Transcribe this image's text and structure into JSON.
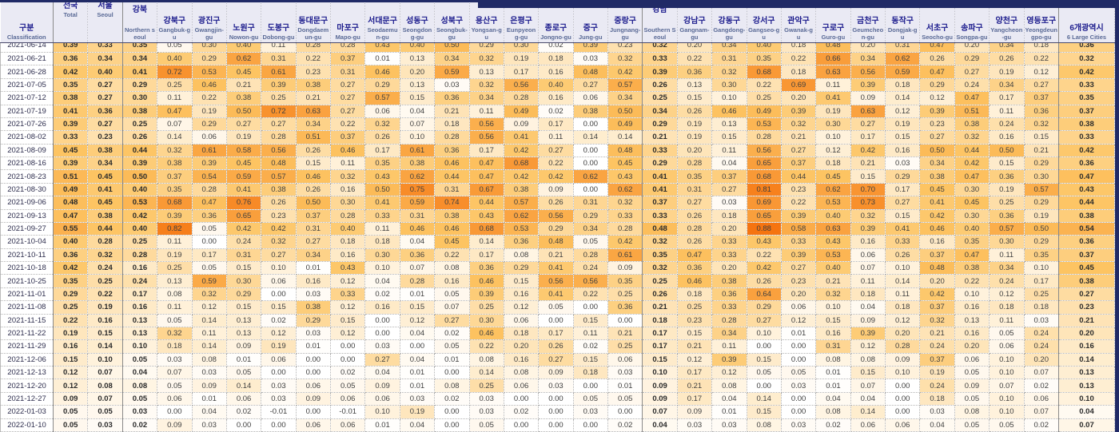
{
  "table": {
    "corner": {
      "ko": "구분",
      "en": "Classification"
    },
    "colors": {
      "band_navy": "#202A66",
      "header_bg": "#EAEAF4",
      "header_korean_text": "#1A1A8C",
      "header_english_text": "#5A6A96",
      "heat_scale_min": "#FFFFFF",
      "heat_scale_mid": "#FDC462",
      "heat_scale_max": "#F5700C",
      "heat_scale_cap": 0.9
    },
    "columns": [
      {
        "ko": "전국",
        "en": "Total",
        "bold": true,
        "lift": true
      },
      {
        "ko": "서울",
        "en": "Seoul",
        "bold": true,
        "lift": true
      },
      {
        "ko": "강북",
        "en": "Northern seoul",
        "bold": true,
        "group": true
      },
      {
        "ko": "강북구",
        "en": "Gangbuk-gu"
      },
      {
        "ko": "광진구",
        "en": "Gwangjin-gu"
      },
      {
        "ko": "노원구",
        "en": "Nowon-gu"
      },
      {
        "ko": "도봉구",
        "en": "Dobong-gu"
      },
      {
        "ko": "동대문구",
        "en": "Dongdaemun-gu"
      },
      {
        "ko": "마포구",
        "en": "Mapo-gu"
      },
      {
        "ko": "서대문구",
        "en": "Seodaemun-gu"
      },
      {
        "ko": "성동구",
        "en": "Seongdong-gu"
      },
      {
        "ko": "성북구",
        "en": "Seongbuk-gu"
      },
      {
        "ko": "용산구",
        "en": "Yongsan-gu"
      },
      {
        "ko": "은평구",
        "en": "Eunpyeong-gu"
      },
      {
        "ko": "종로구",
        "en": "Jongno-gu"
      },
      {
        "ko": "중구",
        "en": "Jung-gu"
      },
      {
        "ko": "중랑구",
        "en": "Jungnang-gu"
      },
      {
        "ko": "강남",
        "en": "Southern Seoul",
        "bold": true,
        "group": true
      },
      {
        "ko": "강남구",
        "en": "Gangnam-gu"
      },
      {
        "ko": "강동구",
        "en": "Gangdong-gu"
      },
      {
        "ko": "강서구",
        "en": "Gangseo-gu"
      },
      {
        "ko": "관악구",
        "en": "Gwanak-gu"
      },
      {
        "ko": "구로구",
        "en": "Guro-gu"
      },
      {
        "ko": "금천구",
        "en": "Geumcheon-gu"
      },
      {
        "ko": "동작구",
        "en": "Dongjak-gu"
      },
      {
        "ko": "서초구",
        "en": "Seocho-gu"
      },
      {
        "ko": "송파구",
        "en": "Songpa-gu"
      },
      {
        "ko": "양천구",
        "en": "Yangcheon-gu"
      },
      {
        "ko": "영등포구",
        "en": "Yeongdeungpo-gu"
      },
      {
        "ko": "6개광역시",
        "en": "6 Large Cities",
        "bold": true,
        "wide": true
      }
    ],
    "rows": [
      {
        "date": "2021-06-14",
        "values": [
          0.39,
          0.33,
          0.35,
          0.05,
          0.3,
          0.4,
          0.11,
          0.28,
          0.28,
          0.43,
          0.4,
          0.5,
          0.29,
          0.3,
          0.02,
          0.39,
          0.23,
          0.32,
          0.2,
          0.34,
          0.4,
          0.18,
          0.48,
          0.2,
          0.31,
          0.47,
          0.2,
          0.34,
          0.18,
          0.36
        ]
      },
      {
        "date": "2021-06-21",
        "values": [
          0.36,
          0.34,
          0.34,
          0.4,
          0.29,
          0.62,
          0.31,
          0.22,
          0.37,
          0.01,
          0.13,
          0.34,
          0.32,
          0.19,
          0.18,
          0.03,
          0.32,
          0.33,
          0.22,
          0.31,
          0.35,
          0.22,
          0.66,
          0.34,
          0.62,
          0.26,
          0.29,
          0.26,
          0.22,
          0.32
        ]
      },
      {
        "date": "2021-06-28",
        "values": [
          0.42,
          0.4,
          0.41,
          0.72,
          0.53,
          0.45,
          0.61,
          0.23,
          0.31,
          0.46,
          0.2,
          0.59,
          0.13,
          0.17,
          0.16,
          0.48,
          0.42,
          0.39,
          0.36,
          0.32,
          0.68,
          0.18,
          0.63,
          0.56,
          0.59,
          0.47,
          0.27,
          0.19,
          0.12,
          0.42
        ]
      },
      {
        "date": "2021-07-05",
        "values": [
          0.35,
          0.27,
          0.29,
          0.25,
          0.46,
          0.21,
          0.39,
          0.38,
          0.27,
          0.29,
          0.13,
          0.03,
          0.32,
          0.56,
          0.4,
          0.27,
          0.57,
          0.26,
          0.13,
          0.3,
          0.22,
          0.69,
          0.11,
          0.39,
          0.18,
          0.29,
          0.24,
          0.34,
          0.27,
          0.33
        ]
      },
      {
        "date": "2021-07-12",
        "values": [
          0.38,
          0.27,
          0.3,
          0.11,
          0.22,
          0.38,
          0.25,
          0.21,
          0.27,
          0.57,
          0.15,
          0.36,
          0.34,
          0.28,
          0.16,
          0.06,
          0.34,
          0.25,
          0.15,
          0.1,
          0.25,
          0.2,
          0.41,
          0.09,
          0.14,
          0.12,
          0.47,
          0.17,
          0.37,
          0.35
        ]
      },
      {
        "date": "2021-07-19",
        "values": [
          0.41,
          0.36,
          0.38,
          0.47,
          0.19,
          0.5,
          0.72,
          0.63,
          0.27,
          0.06,
          0.04,
          0.21,
          0.11,
          0.49,
          0.02,
          0.38,
          0.5,
          0.34,
          0.26,
          0.46,
          0.49,
          0.39,
          0.19,
          0.63,
          0.12,
          0.39,
          0.51,
          0.11,
          0.36,
          0.37
        ]
      },
      {
        "date": "2021-07-26",
        "values": [
          0.39,
          0.27,
          0.25,
          0.07,
          0.29,
          0.27,
          0.27,
          0.34,
          0.22,
          0.32,
          0.07,
          0.18,
          0.56,
          0.09,
          0.17,
          0.0,
          0.49,
          0.29,
          0.19,
          0.13,
          0.53,
          0.32,
          0.3,
          0.27,
          0.19,
          0.23,
          0.38,
          0.24,
          0.32,
          0.38
        ]
      },
      {
        "date": "2021-08-02",
        "values": [
          0.33,
          0.23,
          0.26,
          0.14,
          0.06,
          0.19,
          0.28,
          0.51,
          0.37,
          0.26,
          0.1,
          0.28,
          0.56,
          0.41,
          0.11,
          0.14,
          0.14,
          0.21,
          0.19,
          0.15,
          0.28,
          0.21,
          0.1,
          0.17,
          0.15,
          0.27,
          0.32,
          0.16,
          0.15,
          0.33
        ]
      },
      {
        "date": "2021-08-09",
        "values": [
          0.45,
          0.38,
          0.44,
          0.32,
          0.61,
          0.58,
          0.56,
          0.26,
          0.46,
          0.17,
          0.61,
          0.36,
          0.17,
          0.42,
          0.27,
          0.0,
          0.48,
          0.33,
          0.2,
          0.11,
          0.56,
          0.27,
          0.12,
          0.42,
          0.16,
          0.5,
          0.44,
          0.5,
          0.21,
          0.42
        ]
      },
      {
        "date": "2021-08-16",
        "values": [
          0.39,
          0.34,
          0.39,
          0.38,
          0.39,
          0.45,
          0.48,
          0.15,
          0.11,
          0.35,
          0.38,
          0.46,
          0.47,
          0.68,
          0.22,
          0.0,
          0.45,
          0.29,
          0.28,
          0.04,
          0.65,
          0.37,
          0.18,
          0.21,
          0.03,
          0.34,
          0.42,
          0.15,
          0.29,
          0.36
        ]
      },
      {
        "date": "2021-08-23",
        "values": [
          0.51,
          0.45,
          0.5,
          0.37,
          0.54,
          0.59,
          0.57,
          0.46,
          0.32,
          0.43,
          0.62,
          0.44,
          0.47,
          0.42,
          0.42,
          0.62,
          0.43,
          0.41,
          0.35,
          0.37,
          0.68,
          0.44,
          0.45,
          0.15,
          0.29,
          0.38,
          0.47,
          0.36,
          0.3,
          0.47
        ]
      },
      {
        "date": "2021-08-30",
        "values": [
          0.49,
          0.41,
          0.4,
          0.35,
          0.28,
          0.41,
          0.38,
          0.26,
          0.16,
          0.5,
          0.75,
          0.31,
          0.67,
          0.38,
          0.09,
          0.0,
          0.62,
          0.41,
          0.31,
          0.27,
          0.81,
          0.23,
          0.62,
          0.7,
          0.17,
          0.45,
          0.3,
          0.19,
          0.57,
          0.43
        ]
      },
      {
        "date": "2021-09-06",
        "values": [
          0.48,
          0.45,
          0.53,
          0.68,
          0.47,
          0.76,
          0.26,
          0.5,
          0.3,
          0.41,
          0.59,
          0.74,
          0.44,
          0.57,
          0.26,
          0.31,
          0.32,
          0.37,
          0.27,
          0.03,
          0.69,
          0.22,
          0.53,
          0.73,
          0.27,
          0.41,
          0.45,
          0.25,
          0.29,
          0.44
        ]
      },
      {
        "date": "2021-09-13",
        "values": [
          0.47,
          0.38,
          0.42,
          0.39,
          0.36,
          0.65,
          0.23,
          0.37,
          0.28,
          0.33,
          0.31,
          0.38,
          0.43,
          0.62,
          0.56,
          0.29,
          0.33,
          0.33,
          0.26,
          0.18,
          0.65,
          0.39,
          0.4,
          0.32,
          0.15,
          0.42,
          0.3,
          0.36,
          0.19,
          0.38
        ]
      },
      {
        "date": "2021-09-27",
        "values": [
          0.55,
          0.44,
          0.4,
          0.82,
          0.05,
          0.42,
          0.42,
          0.31,
          0.4,
          0.11,
          0.46,
          0.46,
          0.68,
          0.53,
          0.29,
          0.34,
          0.28,
          0.48,
          0.28,
          0.2,
          0.88,
          0.58,
          0.63,
          0.39,
          0.41,
          0.46,
          0.4,
          0.57,
          0.5,
          0.54
        ]
      },
      {
        "date": "2021-10-04",
        "values": [
          0.4,
          0.28,
          0.25,
          0.11,
          0.0,
          0.24,
          0.32,
          0.27,
          0.18,
          0.18,
          0.04,
          0.45,
          0.14,
          0.36,
          0.48,
          0.05,
          0.42,
          0.32,
          0.26,
          0.33,
          0.43,
          0.33,
          0.43,
          0.16,
          0.33,
          0.16,
          0.35,
          0.3,
          0.29,
          0.36
        ]
      },
      {
        "date": "2021-10-11",
        "values": [
          0.36,
          0.32,
          0.28,
          0.19,
          0.17,
          0.31,
          0.27,
          0.34,
          0.16,
          0.3,
          0.36,
          0.22,
          0.17,
          0.08,
          0.21,
          0.28,
          0.61,
          0.35,
          0.47,
          0.33,
          0.22,
          0.39,
          0.53,
          0.06,
          0.26,
          0.37,
          0.47,
          0.11,
          0.35,
          0.37
        ]
      },
      {
        "date": "2021-10-18",
        "values": [
          0.42,
          0.24,
          0.16,
          0.25,
          0.05,
          0.15,
          0.1,
          0.01,
          0.43,
          0.1,
          0.07,
          0.08,
          0.36,
          0.29,
          0.41,
          0.24,
          0.09,
          0.32,
          0.36,
          0.2,
          0.42,
          0.27,
          0.4,
          0.07,
          0.1,
          0.48,
          0.38,
          0.34,
          0.1,
          0.45
        ]
      },
      {
        "date": "2021-10-25",
        "values": [
          0.35,
          0.25,
          0.24,
          0.13,
          0.59,
          0.3,
          0.06,
          0.16,
          0.12,
          0.04,
          0.28,
          0.16,
          0.46,
          0.15,
          0.56,
          0.56,
          0.35,
          0.25,
          0.46,
          0.38,
          0.26,
          0.23,
          0.21,
          0.11,
          0.14,
          0.2,
          0.22,
          0.24,
          0.17,
          0.38
        ]
      },
      {
        "date": "2021-11-01",
        "values": [
          0.29,
          0.22,
          0.17,
          0.08,
          0.32,
          0.29,
          0.0,
          0.03,
          0.33,
          0.02,
          0.01,
          0.05,
          0.39,
          0.16,
          0.41,
          0.22,
          0.25,
          0.26,
          0.18,
          0.36,
          0.64,
          0.2,
          0.32,
          0.18,
          0.11,
          0.42,
          0.1,
          0.12,
          0.25,
          0.27
        ]
      },
      {
        "date": "2021-11-08",
        "values": [
          0.25,
          0.19,
          0.16,
          0.11,
          0.12,
          0.15,
          0.15,
          0.38,
          0.12,
          0.16,
          0.15,
          0.07,
          0.25,
          0.12,
          0.05,
          0.0,
          0.36,
          0.21,
          0.25,
          0.33,
          0.29,
          0.06,
          0.1,
          0.04,
          0.18,
          0.37,
          0.16,
          0.18,
          0.18,
          0.23
        ]
      },
      {
        "date": "2021-11-15",
        "values": [
          0.22,
          0.16,
          0.13,
          0.05,
          0.14,
          0.13,
          0.02,
          0.29,
          0.15,
          0.0,
          0.12,
          0.27,
          0.3,
          0.06,
          0.0,
          0.15,
          0.0,
          0.18,
          0.23,
          0.28,
          0.27,
          0.12,
          0.15,
          0.09,
          0.12,
          0.32,
          0.13,
          0.11,
          0.03,
          0.21
        ]
      },
      {
        "date": "2021-11-22",
        "values": [
          0.19,
          0.15,
          0.13,
          0.32,
          0.11,
          0.13,
          0.12,
          0.03,
          0.12,
          0.0,
          0.04,
          0.02,
          0.46,
          0.18,
          0.17,
          0.11,
          0.21,
          0.17,
          0.15,
          0.34,
          0.1,
          0.01,
          0.16,
          0.39,
          0.2,
          0.21,
          0.16,
          0.05,
          0.24,
          0.2
        ]
      },
      {
        "date": "2021-11-29",
        "values": [
          0.16,
          0.14,
          0.1,
          0.18,
          0.14,
          0.09,
          0.19,
          0.01,
          0.0,
          0.03,
          0.0,
          0.05,
          0.22,
          0.2,
          0.26,
          0.02,
          0.25,
          0.17,
          0.21,
          0.11,
          0.0,
          0.0,
          0.31,
          0.12,
          0.28,
          0.24,
          0.2,
          0.06,
          0.24,
          0.16
        ]
      },
      {
        "date": "2021-12-06",
        "values": [
          0.15,
          0.1,
          0.05,
          0.03,
          0.08,
          0.01,
          0.06,
          0.0,
          0.0,
          0.27,
          0.04,
          0.01,
          0.08,
          0.16,
          0.27,
          0.15,
          0.06,
          0.15,
          0.12,
          0.39,
          0.15,
          0.0,
          0.08,
          0.08,
          0.09,
          0.37,
          0.06,
          0.1,
          0.2,
          0.14
        ]
      },
      {
        "date": "2021-12-13",
        "values": [
          0.12,
          0.07,
          0.04,
          0.07,
          0.03,
          0.05,
          0.0,
          0.0,
          0.02,
          0.04,
          0.01,
          0.0,
          0.14,
          0.08,
          0.09,
          0.18,
          0.03,
          0.1,
          0.17,
          0.12,
          0.05,
          0.05,
          0.01,
          0.15,
          0.1,
          0.19,
          0.05,
          0.1,
          0.07,
          0.13
        ]
      },
      {
        "date": "2021-12-20",
        "values": [
          0.12,
          0.08,
          0.08,
          0.05,
          0.09,
          0.14,
          0.03,
          0.06,
          0.05,
          0.09,
          0.01,
          0.08,
          0.25,
          0.06,
          0.03,
          0.0,
          0.01,
          0.09,
          0.21,
          0.08,
          0.0,
          0.03,
          0.01,
          0.07,
          0.0,
          0.24,
          0.09,
          0.07,
          0.02,
          0.13
        ]
      },
      {
        "date": "2021-12-27",
        "values": [
          0.09,
          0.07,
          0.05,
          0.06,
          0.01,
          0.06,
          0.03,
          0.09,
          0.06,
          0.06,
          0.03,
          0.02,
          0.03,
          0.0,
          0.0,
          0.05,
          0.05,
          0.09,
          0.17,
          0.04,
          0.14,
          0.0,
          0.04,
          0.04,
          0.0,
          0.18,
          0.05,
          0.1,
          0.06,
          0.1
        ]
      },
      {
        "date": "2022-01-03",
        "values": [
          0.05,
          0.05,
          0.03,
          0.0,
          0.04,
          0.02,
          -0.01,
          0.0,
          -0.01,
          0.1,
          0.19,
          0.0,
          0.03,
          0.02,
          0.0,
          0.03,
          0.0,
          0.07,
          0.09,
          0.01,
          0.15,
          0.0,
          0.08,
          0.14,
          0.0,
          0.03,
          0.08,
          0.1,
          0.07,
          0.04
        ]
      },
      {
        "date": "2022-01-10",
        "values": [
          0.05,
          0.03,
          0.02,
          0.09,
          0.03,
          0.0,
          0.0,
          0.06,
          0.06,
          0.01,
          0.04,
          0.0,
          0.05,
          0.0,
          0.0,
          0.0,
          0.02,
          0.04,
          0.03,
          0.03,
          0.08,
          0.03,
          0.02,
          0.06,
          0.06,
          0.04,
          0.05,
          0.05,
          0.02,
          0.07
        ]
      }
    ]
  }
}
